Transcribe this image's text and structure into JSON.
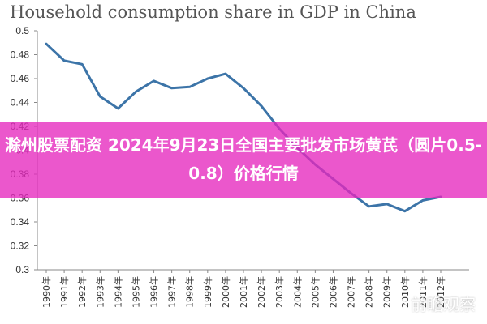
{
  "chart_data": {
    "type": "line",
    "title": "Household consumption share in GDP in China",
    "xlabel": "",
    "ylabel": "",
    "x": [
      "1990年",
      "1991年",
      "1992年",
      "1993年",
      "1994年",
      "1995年",
      "1996年",
      "1997年",
      "1998年",
      "1999年",
      "2000年",
      "2001年",
      "2002年",
      "2003年",
      "2004年",
      "2005年",
      "2006年",
      "2007年",
      "2008年",
      "2009年",
      "2010年",
      "2011年",
      "2012年"
    ],
    "series": [
      {
        "name": "",
        "color": "#3c74a8",
        "values": [
          0.489,
          0.475,
          0.472,
          0.445,
          0.435,
          0.449,
          0.458,
          0.452,
          0.453,
          0.46,
          0.464,
          0.452,
          0.437,
          0.418,
          0.402,
          0.388,
          0.376,
          0.364,
          0.353,
          0.355,
          0.349,
          0.358,
          0.361
        ]
      }
    ],
    "ylim": [
      0.3,
      0.5
    ],
    "yticks": [
      "0.5",
      "0.48",
      "0.46",
      "0.44",
      "0.42",
      "0.4",
      "0.38",
      "0.36",
      "0.34",
      "0.32",
      "0.3"
    ],
    "grid": false
  },
  "overlay": {
    "banner_text": "滁州股票配资 2024年9月23日全国主要批发市场黄芪（圆片0.5-0.8）价格行情",
    "banner_color": "#e628be",
    "watermark_text": "前瞻观察"
  }
}
